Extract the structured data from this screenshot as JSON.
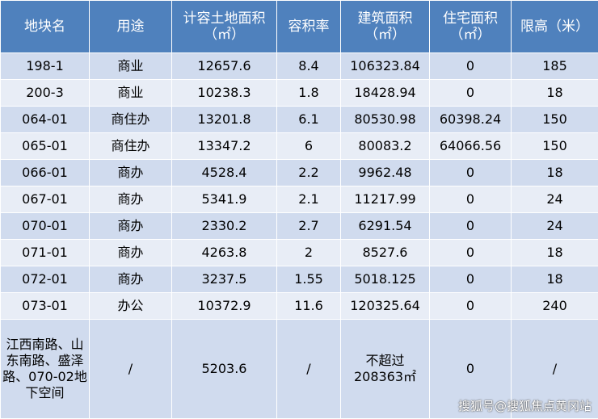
{
  "table": {
    "header": [
      [
        "地块名"
      ],
      [
        "用途"
      ],
      [
        "计容土地面积",
        "（㎡）"
      ],
      [
        "容积率"
      ],
      [
        "建筑面积",
        "（㎡）"
      ],
      [
        "住宅面积",
        "（㎡）"
      ],
      [
        "限高（米）"
      ]
    ],
    "rows": [
      [
        "198-1",
        "商业",
        "12657.6",
        "8.4",
        "106323.84",
        "0",
        "185"
      ],
      [
        "200-3",
        "商业",
        "10238.3",
        "1.8",
        "18428.94",
        "0",
        "18"
      ],
      [
        "064-01",
        "商住办",
        "13201.8",
        "6.1",
        "80530.98",
        "60398.24",
        "150"
      ],
      [
        "065-01",
        "商住办",
        "13347.2",
        "6",
        "80083.2",
        "64066.56",
        "150"
      ],
      [
        "066-01",
        "商办",
        "4528.4",
        "2.2",
        "9962.48",
        "0",
        "18"
      ],
      [
        "067-01",
        "商办",
        "5341.9",
        "2.1",
        "11217.99",
        "0",
        "24"
      ],
      [
        "070-01",
        "商办",
        "2330.2",
        "2.7",
        "6291.54",
        "0",
        "24"
      ],
      [
        "071-01",
        "商办",
        "4263.8",
        "2",
        "8527.6",
        "0",
        "18"
      ],
      [
        "072-01",
        "商办",
        "3237.5",
        "1.55",
        "5018.125",
        "0",
        "18"
      ],
      [
        "073-01",
        "办公",
        "10372.9",
        "11.6",
        "120325.64",
        "0",
        "240"
      ],
      [
        "江西南路、山东南路、盛泽路、070-02地下空间",
        "/",
        "5203.6",
        "/",
        [
          "不超过",
          "208363㎡"
        ],
        "0",
        "/"
      ]
    ]
  },
  "watermark": "搜狐号@搜狐焦点黄冈站"
}
